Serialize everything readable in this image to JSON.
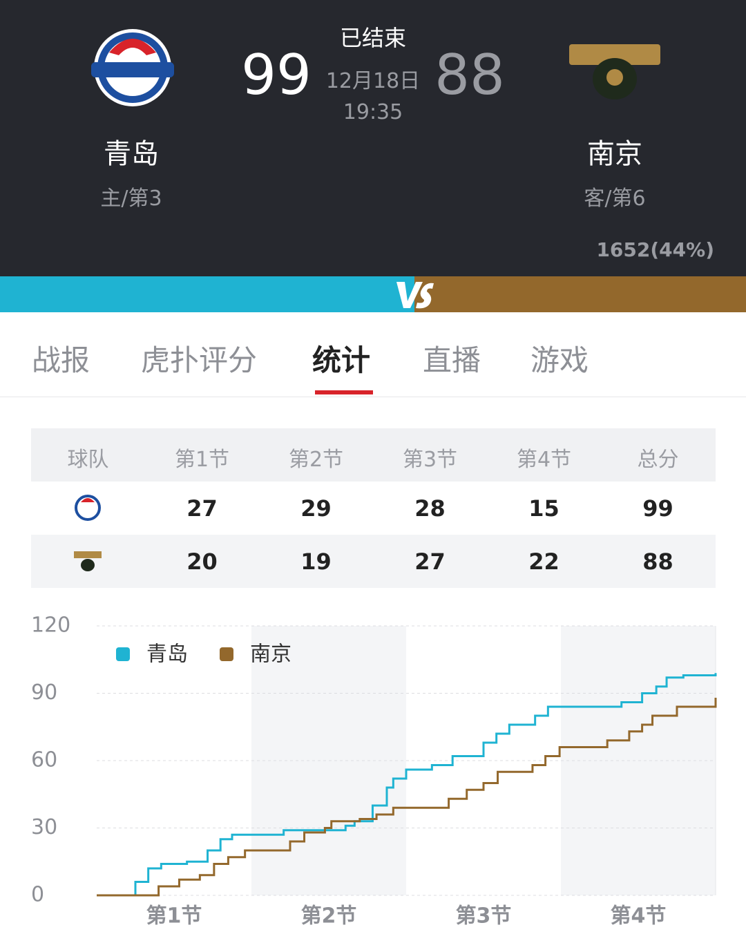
{
  "header": {
    "status": "已结束",
    "date": "12月18日",
    "time": "19:35",
    "home": {
      "name": "青岛",
      "score": 99,
      "rank": "主/第3"
    },
    "away": {
      "name": "南京",
      "score": 88,
      "rank": "客/第6",
      "support": "1652(44%)"
    }
  },
  "tabs": {
    "items": [
      "战报",
      "虎扑评分",
      "统计",
      "直播",
      "游戏"
    ],
    "active": 2
  },
  "score_table": {
    "columns": [
      "球队",
      "第1节",
      "第2节",
      "第3节",
      "第4节",
      "总分"
    ],
    "rows": [
      [
        27,
        29,
        28,
        15,
        99
      ],
      [
        20,
        19,
        27,
        22,
        88
      ]
    ]
  },
  "chart_data": {
    "type": "line",
    "categories": [
      "第1节",
      "第2节",
      "第3节",
      "第4节"
    ],
    "xlim": [
      0,
      48
    ],
    "ylim": [
      0,
      120
    ],
    "yticks": [
      0,
      30,
      60,
      90,
      120
    ],
    "grid": true,
    "step": true,
    "legend": "top-left",
    "series": [
      {
        "name": "青岛",
        "color": "#1fb3d2",
        "x": [
          0,
          2.1,
          3,
          4,
          5,
          7,
          8.6,
          9.6,
          10.5,
          12,
          14.5,
          17,
          19.3,
          20,
          21.4,
          22.5,
          23,
          24,
          26,
          27.6,
          29,
          30,
          31,
          32,
          34,
          35,
          39,
          40.7,
          42.3,
          43.4,
          44.2,
          45.5,
          48
        ],
        "values": [
          0,
          0,
          6,
          12,
          14,
          15,
          20,
          25,
          27,
          27,
          29,
          29,
          31,
          33,
          40,
          48,
          52,
          56,
          58,
          62,
          62,
          68,
          72,
          76,
          80,
          84,
          84,
          86,
          90,
          93,
          97,
          98,
          99
        ]
      },
      {
        "name": "南京",
        "color": "#93682c",
        "x": [
          0,
          4,
          4.8,
          6.4,
          8,
          9.1,
          10.2,
          11.5,
          12,
          14,
          15,
          16.1,
          17.7,
          18.2,
          20.4,
          21.7,
          23,
          24,
          26,
          27.3,
          28.7,
          30,
          31.1,
          33.8,
          34.8,
          35.9,
          38.6,
          39.6,
          41.3,
          42.3,
          43.1,
          45,
          47.6,
          48
        ],
        "values": [
          0,
          0,
          4,
          7,
          9,
          14,
          17,
          20,
          20,
          20,
          24,
          28,
          30,
          33,
          34,
          36,
          39,
          39,
          39,
          43,
          47,
          50,
          55,
          58,
          62,
          66,
          66,
          69,
          73,
          76,
          80,
          84,
          84,
          88
        ]
      }
    ]
  }
}
